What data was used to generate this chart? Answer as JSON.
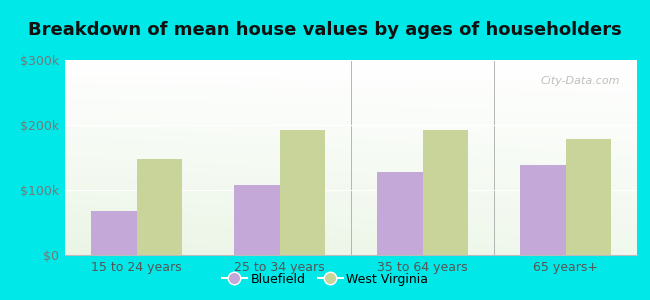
{
  "title": "Breakdown of mean house values by ages of householders",
  "categories": [
    "15 to 24 years",
    "25 to 34 years",
    "35 to 64 years",
    "65 years+"
  ],
  "series": {
    "Bluefield": [
      68000,
      108000,
      128000,
      138000
    ],
    "West Virginia": [
      148000,
      193000,
      193000,
      178000
    ]
  },
  "bar_colors": {
    "Bluefield": "#c4a8d8",
    "West Virginia": "#c8d49a"
  },
  "ylim": [
    0,
    300000
  ],
  "yticks": [
    0,
    100000,
    200000,
    300000
  ],
  "ytick_labels": [
    "$0",
    "$100k",
    "$200k",
    "$300k"
  ],
  "background_color": "#00e8e8",
  "title_fontsize": 13,
  "axis_label_fontsize": 9,
  "legend_fontsize": 9,
  "bar_width": 0.32,
  "watermark": "City-Data.com",
  "separator_indices": [
    1,
    2,
    3
  ],
  "grid_color": "#e0e8d0",
  "spine_bottom_color": "#bbbbbb"
}
